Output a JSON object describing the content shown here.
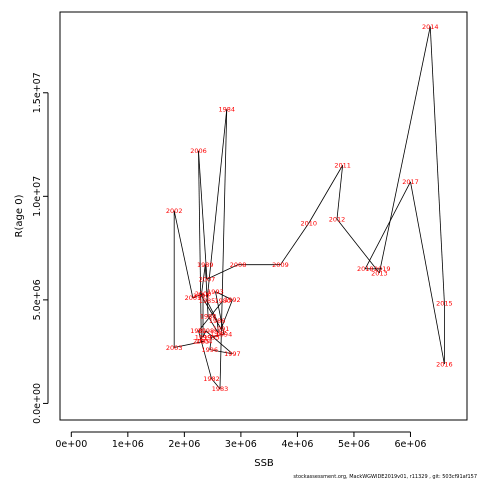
{
  "chart_data": {
    "type": "line",
    "xlabel": "SSB",
    "ylabel": "R(age 0)",
    "xlim": [
      -200000,
      7000000
    ],
    "ylim": [
      -800000,
      18900000
    ],
    "x_ticks": [
      0,
      1000000,
      2000000,
      3000000,
      4000000,
      5000000,
      6000000
    ],
    "x_tick_labels": [
      "0e+00",
      "1e+06",
      "2e+06",
      "3e+06",
      "4e+06",
      "5e+06",
      "6e+06"
    ],
    "y_ticks": [
      0,
      5000000,
      10000000,
      15000000
    ],
    "y_tick_labels": [
      "0.0e+00",
      "5.0e+06",
      "1.0e+07",
      "1.5e+07"
    ],
    "grid": false,
    "line_color": "#000000",
    "label_color": "#ff0000",
    "points": [
      {
        "year": "1980",
        "x": 2680000,
        "y": 4950000
      },
      {
        "year": "1981",
        "x": 2250000,
        "y": 3500000
      },
      {
        "year": "1982",
        "x": 2480000,
        "y": 1200000
      },
      {
        "year": "1983",
        "x": 2630000,
        "y": 700000
      },
      {
        "year": "1984",
        "x": 2750000,
        "y": 14200000
      },
      {
        "year": "1985",
        "x": 2400000,
        "y": 4950000
      },
      {
        "year": "1986",
        "x": 2580000,
        "y": 4000000
      },
      {
        "year": "1987",
        "x": 2600000,
        "y": 3400000
      },
      {
        "year": "1988",
        "x": 2420000,
        "y": 4200000
      },
      {
        "year": "1989",
        "x": 2370000,
        "y": 6700000
      },
      {
        "year": "1990",
        "x": 2300000,
        "y": 5200000
      },
      {
        "year": "1991",
        "x": 2650000,
        "y": 3600000
      },
      {
        "year": "1992",
        "x": 2850000,
        "y": 5000000
      },
      {
        "year": "1993",
        "x": 2550000,
        "y": 5400000
      },
      {
        "year": "1994",
        "x": 2700000,
        "y": 3350000
      },
      {
        "year": "1995",
        "x": 2480000,
        "y": 3200000
      },
      {
        "year": "1996",
        "x": 2450000,
        "y": 2600000
      },
      {
        "year": "1997",
        "x": 2850000,
        "y": 2400000
      },
      {
        "year": "1998",
        "x": 2380000,
        "y": 3500000
      },
      {
        "year": "1999",
        "x": 2330000,
        "y": 3200000
      },
      {
        "year": "2000",
        "x": 2330000,
        "y": 5300000
      },
      {
        "year": "2001",
        "x": 2150000,
        "y": 5100000
      },
      {
        "year": "2002",
        "x": 1820000,
        "y": 9300000
      },
      {
        "year": "2003",
        "x": 1820000,
        "y": 2700000
      },
      {
        "year": "2004",
        "x": 2350000,
        "y": 3000000
      },
      {
        "year": "2005",
        "x": 2300000,
        "y": 3000000
      },
      {
        "year": "2006",
        "x": 2250000,
        "y": 12200000
      },
      {
        "year": "2007",
        "x": 2400000,
        "y": 6000000
      },
      {
        "year": "2008",
        "x": 2950000,
        "y": 6700000
      },
      {
        "year": "2009",
        "x": 3700000,
        "y": 6700000
      },
      {
        "year": "2010",
        "x": 4200000,
        "y": 8700000
      },
      {
        "year": "2011",
        "x": 4800000,
        "y": 11500000
      },
      {
        "year": "2012",
        "x": 4700000,
        "y": 8900000
      },
      {
        "year": "2013",
        "x": 5450000,
        "y": 6300000
      },
      {
        "year": "2014",
        "x": 6350000,
        "y": 18200000
      },
      {
        "year": "2015",
        "x": 6600000,
        "y": 4850000
      },
      {
        "year": "2016",
        "x": 6600000,
        "y": 1900000
      },
      {
        "year": "2017",
        "x": 6000000,
        "y": 10700000
      },
      {
        "year": "2018",
        "x": 5200000,
        "y": 6500000
      },
      {
        "year": "2019",
        "x": 5500000,
        "y": 6500000
      }
    ]
  },
  "footer": {
    "note": "stockassessment.org, MackWGWIDE2019v01, r11329 , git: 503cf91af157"
  }
}
